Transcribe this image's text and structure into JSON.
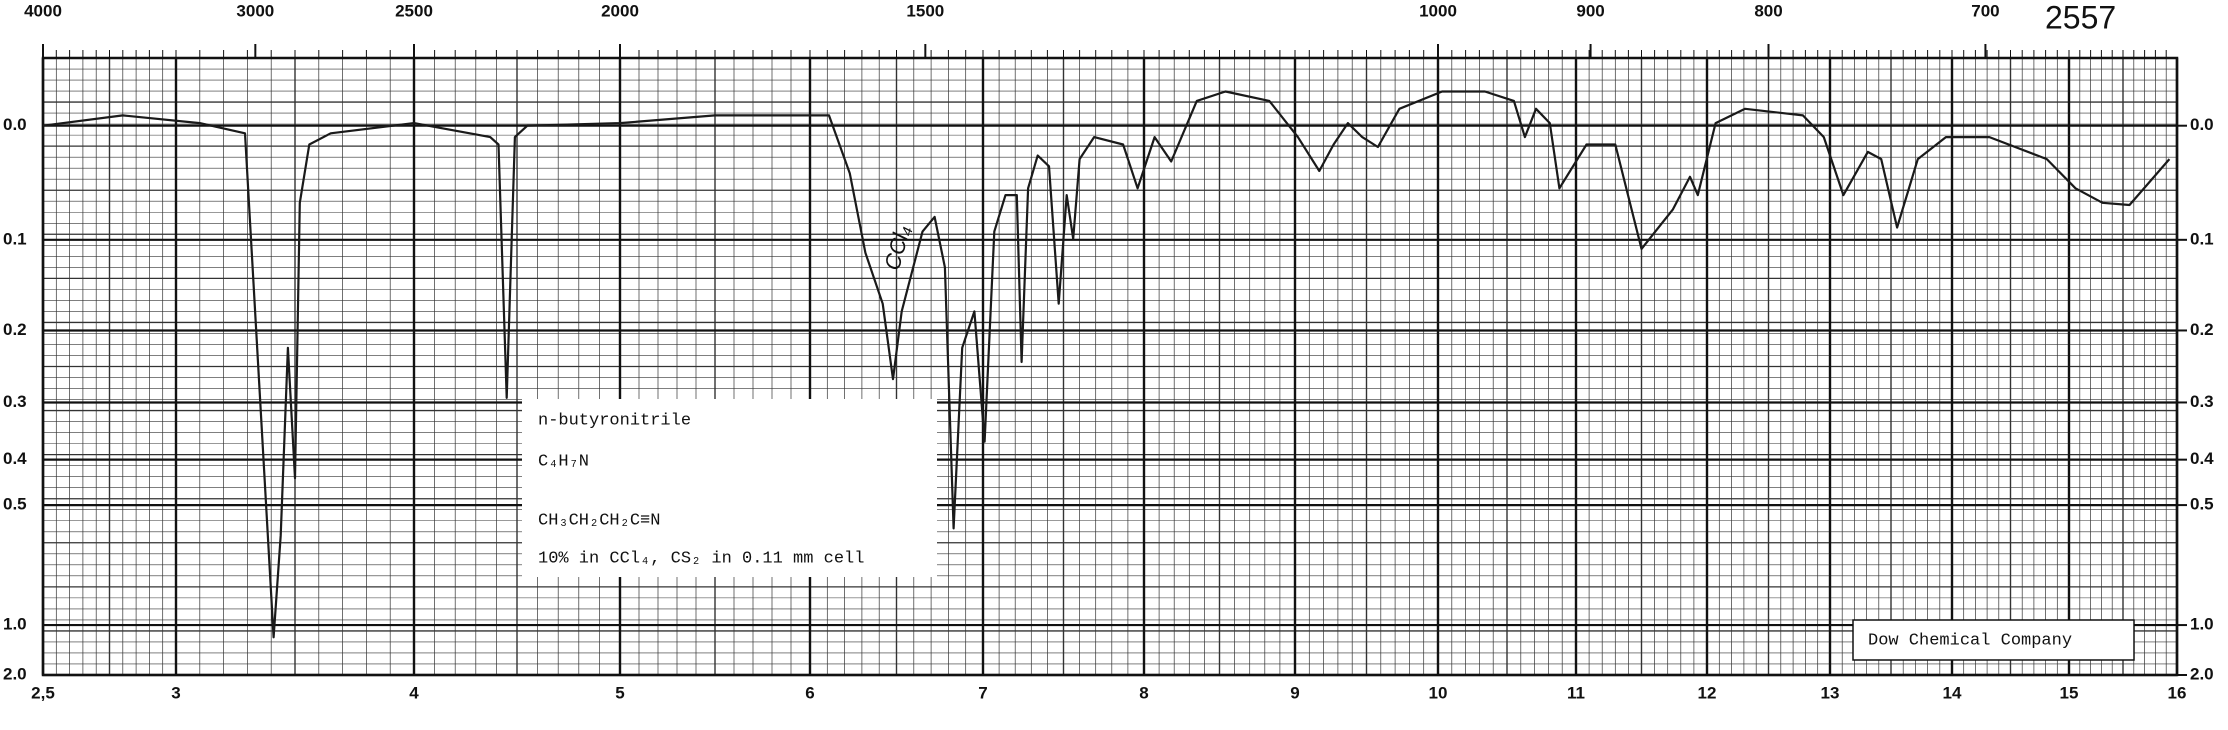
{
  "chart_data": {
    "type": "line",
    "ref_number": "2557",
    "x": [
      2.5,
      2.8,
      3.1,
      3.29,
      3.41,
      3.44,
      3.47,
      3.5,
      3.52,
      3.56,
      3.65,
      4.0,
      4.37,
      4.41,
      4.45,
      4.49,
      4.55,
      5.0,
      5.5,
      6.11,
      6.23,
      6.32,
      6.42,
      6.48,
      6.53,
      6.65,
      6.72,
      6.78,
      6.83,
      6.88,
      6.95,
      7.01,
      7.07,
      7.14,
      7.21,
      7.24,
      7.28,
      7.34,
      7.41,
      7.47,
      7.52,
      7.56,
      7.6,
      7.69,
      7.87,
      7.96,
      8.07,
      8.18,
      8.35,
      8.54,
      8.83,
      9.02,
      9.17,
      9.27,
      9.37,
      9.47,
      9.58,
      9.73,
      10.03,
      10.34,
      10.55,
      10.63,
      10.71,
      10.81,
      10.88,
      11.08,
      11.3,
      11.5,
      11.74,
      11.87,
      11.93,
      12.07,
      12.31,
      12.78,
      12.95,
      13.11,
      13.31,
      13.42,
      13.55,
      13.72,
      13.95,
      14.32,
      14.81,
      15.06,
      15.31,
      15.56,
      15.93
    ],
    "values": [
      0.0,
      -0.008,
      -0.002,
      0.006,
      1.108,
      0.583,
      0.222,
      0.438,
      0.065,
      0.015,
      0.006,
      -0.002,
      0.009,
      0.015,
      0.293,
      0.009,
      0.0,
      -0.002,
      -0.008,
      -0.008,
      0.039,
      0.113,
      0.168,
      0.265,
      0.177,
      0.092,
      0.078,
      0.128,
      0.562,
      0.222,
      0.177,
      0.366,
      0.092,
      0.058,
      0.058,
      0.241,
      0.052,
      0.024,
      0.033,
      0.168,
      0.058,
      0.099,
      0.027,
      0.009,
      0.015,
      0.052,
      0.009,
      0.029,
      -0.019,
      -0.026,
      -0.019,
      0.009,
      0.037,
      0.015,
      -0.002,
      0.009,
      0.017,
      -0.013,
      -0.026,
      -0.026,
      -0.019,
      0.009,
      -0.013,
      -0.002,
      0.052,
      0.015,
      0.015,
      0.109,
      0.071,
      0.042,
      0.058,
      -0.002,
      -0.013,
      -0.008,
      0.009,
      0.058,
      0.021,
      0.027,
      0.088,
      0.027,
      0.009,
      0.009,
      0.027,
      0.052,
      0.065,
      0.067,
      0.027
    ],
    "color": "#1a1a1a",
    "xlim": [
      2.5,
      16
    ],
    "xticks": [
      {
        "value": 2.5,
        "label": "2,5"
      },
      3,
      4,
      5,
      6,
      7,
      8,
      9,
      10,
      11,
      12,
      13,
      14,
      15,
      16
    ],
    "x2ticks": [
      4000,
      3000,
      2500,
      2000,
      1500,
      1000,
      900,
      800,
      700
    ],
    "ylim": [
      -0.05,
      2
    ],
    "yticks": [
      {
        "value": 0,
        "label": "0.0"
      },
      0.1,
      0.2,
      0.3,
      0.4,
      0.5,
      {
        "value": 1,
        "label": "1.0"
      },
      {
        "value": 2,
        "label": "2.0"
      }
    ],
    "y2ticks": [
      {
        "value": 0,
        "label": "0.0"
      },
      0.1,
      0.2,
      0.3,
      0.4,
      0.5,
      {
        "value": 1,
        "label": "1.0"
      },
      {
        "value": 2,
        "label": "2.0"
      }
    ],
    "grid": true,
    "annotations": [
      "n-butyronitrile",
      "C₄H₇N",
      "CH₃CH₂CH₂C≡N",
      "10% in CCl₄, CS₂ in 0.11 mm cell"
    ],
    "handwritten_note": "CCl₄",
    "source": "Dow Chemical Company"
  }
}
